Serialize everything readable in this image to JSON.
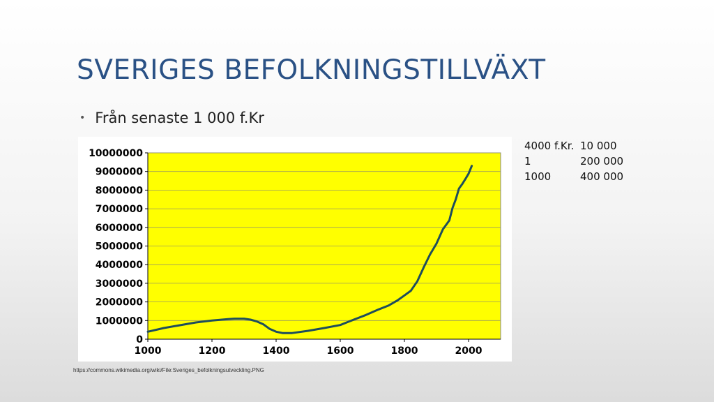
{
  "slide": {
    "title": "SVERIGES BEFOLKNINGSTILLVÄXT",
    "bullet": "Från senaste 1 000 f.Kr",
    "source": "https://commons.wikimedia.org/wiki/File:Sveriges_befolkningsutveckling.PNG"
  },
  "side_table": [
    {
      "year": "4000 f.Kr.",
      "value": "10 000"
    },
    {
      "year": "1",
      "value": "200 000"
    },
    {
      "year": "1000",
      "value": "400 000"
    }
  ],
  "chart_data": {
    "type": "line",
    "title": "",
    "xlabel": "",
    "ylabel": "",
    "xlim": [
      1000,
      2100
    ],
    "ylim": [
      0,
      10000000
    ],
    "x_ticks": [
      1000,
      1200,
      1400,
      1600,
      1800,
      2000
    ],
    "y_ticks": [
      0,
      1000000,
      2000000,
      3000000,
      4000000,
      5000000,
      6000000,
      7000000,
      8000000,
      9000000,
      10000000
    ],
    "grid": true,
    "plot_background": "#ffff00",
    "line_color": "#1e4d5c",
    "series": [
      {
        "x": [
          1000,
          1050,
          1100,
          1150,
          1200,
          1250,
          1270,
          1300,
          1320,
          1340,
          1360,
          1380,
          1400,
          1420,
          1450,
          1500,
          1550,
          1600,
          1620,
          1650,
          1680,
          1700,
          1720,
          1750,
          1780,
          1800,
          1820,
          1840,
          1860,
          1880,
          1900,
          1920,
          1940,
          1950,
          1960,
          1970,
          1980,
          1990,
          2000,
          2010
        ],
        "y": [
          400000,
          600000,
          750000,
          900000,
          1000000,
          1080000,
          1100000,
          1100000,
          1050000,
          950000,
          800000,
          550000,
          400000,
          330000,
          330000,
          450000,
          600000,
          760000,
          900000,
          1100000,
          1300000,
          1450000,
          1600000,
          1800000,
          2100000,
          2350000,
          2600000,
          3100000,
          3850000,
          4550000,
          5130000,
          5900000,
          6370000,
          7040000,
          7500000,
          8080000,
          8320000,
          8590000,
          8880000,
          9300000
        ]
      }
    ]
  }
}
